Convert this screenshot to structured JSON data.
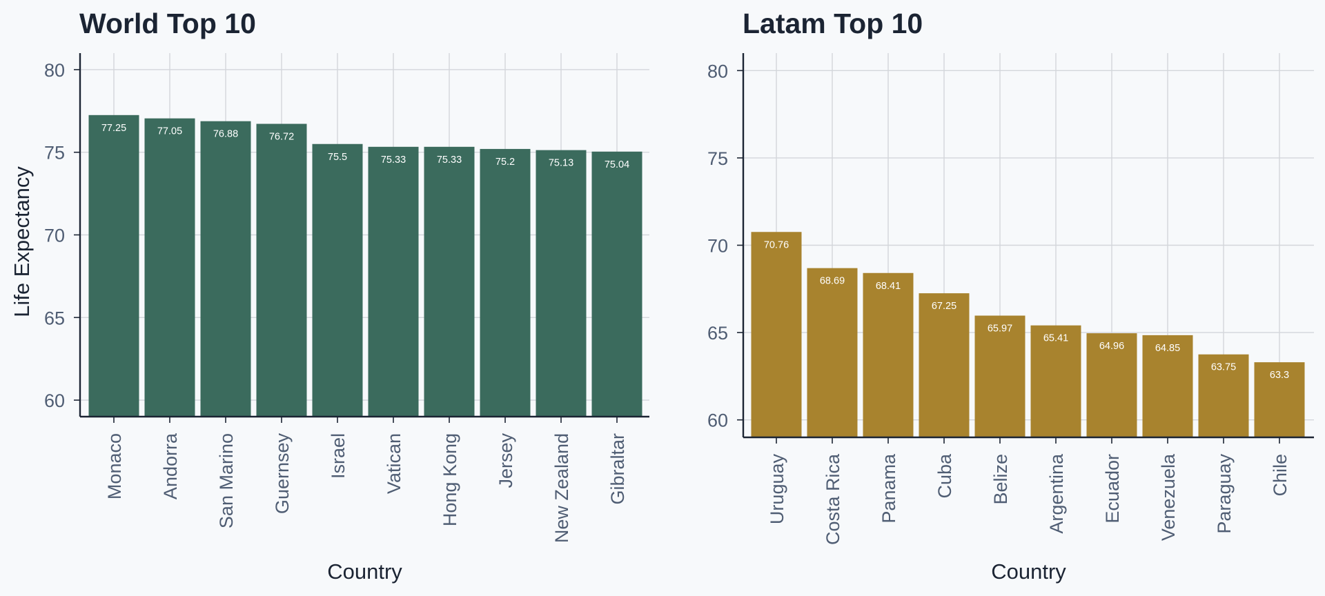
{
  "chart_data": [
    {
      "type": "bar",
      "title": "World Top 10",
      "xlabel": "Country",
      "ylabel": "Life Expectancy",
      "categories": [
        "Monaco",
        "Andorra",
        "San Marino",
        "Guernsey",
        "Israel",
        "Vatican",
        "Hong Kong",
        "Jersey",
        "New Zealand",
        "Gibraltar"
      ],
      "values": [
        77.25,
        77.05,
        76.88,
        76.72,
        75.5,
        75.33,
        75.33,
        75.2,
        75.13,
        75.04
      ],
      "data_labels": [
        "77.25",
        "77.05",
        "76.88",
        "76.72",
        "75.5",
        "75.33",
        "75.33",
        "75.2",
        "75.13",
        "75.04"
      ],
      "ylim": [
        59,
        81
      ],
      "yticks": [
        60,
        65,
        70,
        75,
        80
      ],
      "grid": true,
      "bar_color": "#3b6b5d"
    },
    {
      "type": "bar",
      "title": "Latam Top 10",
      "xlabel": "Country",
      "ylabel": "",
      "categories": [
        "Uruguay",
        "Costa Rica",
        "Panama",
        "Cuba",
        "Belize",
        "Argentina",
        "Ecuador",
        "Venezuela",
        "Paraguay",
        "Chile"
      ],
      "values": [
        70.76,
        68.69,
        68.41,
        67.25,
        65.97,
        65.41,
        64.96,
        64.85,
        63.75,
        63.3
      ],
      "data_labels": [
        "70.76",
        "68.69",
        "68.41",
        "67.25",
        "65.97",
        "65.41",
        "64.96",
        "64.85",
        "63.75",
        "63.3"
      ],
      "ylim": [
        59,
        81
      ],
      "yticks": [
        60,
        65,
        70,
        75,
        80
      ],
      "grid": true,
      "bar_color": "#a8832e"
    }
  ]
}
